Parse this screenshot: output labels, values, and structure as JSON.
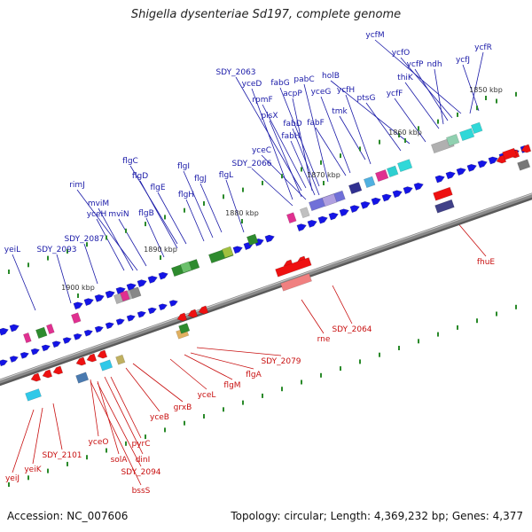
{
  "title": "Shigella dysenteriae Sd197, complete genome",
  "accession_text": "Accession: NC_007606",
  "topology_text": "Topology: circular; Length: 4,369,232 bp; Genes: 4,377",
  "colors": {
    "label_blue": "#1a1aa8",
    "label_red": "#c81010",
    "gene_blue": "#1414e6",
    "gene_red": "#ee1111",
    "backbone": "#8a8a8a",
    "tick": "#2a8a2a"
  },
  "kbp_markers": [
    {
      "label": "1850 kbp",
      "bp": 1850000
    },
    {
      "label": "1860 kbp",
      "bp": 1860000
    },
    {
      "label": "1870 kbp",
      "bp": 1870000
    },
    {
      "label": "1880 kbp",
      "bp": 1880000
    },
    {
      "label": "1890 kbp",
      "bp": 1890000
    },
    {
      "label": "1900 kbp",
      "bp": 1900000
    }
  ],
  "forward_genes": [
    "ycfM",
    "ycfO",
    "ycfR",
    "ycfP",
    "ndh",
    "ycfJ",
    "thiK",
    "holB",
    "ycfF",
    "ptsG",
    "SDY_2063",
    "fabG",
    "pabC",
    "yceD",
    "rpmF",
    "yceG",
    "ycfH",
    "acpP",
    "tmk",
    "plsX",
    "fabD",
    "fabF",
    "fabH",
    "yceC",
    "SDY_2066",
    "flgC",
    "flgI",
    "flgD",
    "flgJ",
    "flgE",
    "flgL",
    "flgH",
    "rimJ",
    "flgB",
    "mviM",
    "yceH",
    "mviN",
    "SDY_2087",
    "SDY_2093",
    "yeiL"
  ],
  "reverse_genes": [
    "fhuE",
    "SDY_2064",
    "rne",
    "SDY_2079",
    "flgA",
    "flgM",
    "yceL",
    "grxB",
    "yceB",
    "pyrC",
    "dinI",
    "yceO",
    "solA",
    "SDY_2094",
    "bssS",
    "SDY_2101",
    "yeiK",
    "yeiJ"
  ]
}
